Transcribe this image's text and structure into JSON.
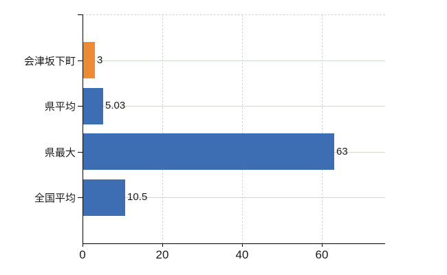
{
  "chart_data": {
    "type": "bar",
    "orientation": "horizontal",
    "title": "",
    "xlabel": "",
    "ylabel": "",
    "categories": [
      "会津坂下町",
      "県平均",
      "県最大",
      "全国平均"
    ],
    "values": [
      3,
      5.03,
      63,
      10.5
    ],
    "value_labels": [
      "3",
      "5.03",
      "63",
      "10.5"
    ],
    "bar_colors": [
      "#EC8B33",
      "#3D6EB3",
      "#3D6EB3",
      "#3D6EB3"
    ],
    "highlight_index": 0,
    "x_ticks": [
      0,
      20,
      40,
      60
    ],
    "x_tick_labels": [
      "0",
      "20",
      "40",
      "60"
    ],
    "xlim": [
      0,
      75.9
    ],
    "grid": true,
    "legend": false,
    "colors": {
      "highlight_bar": "#EC8B33",
      "default_bar": "#3D6EB3",
      "axis": "#000000",
      "grid_horizontal": "#CFD9CF",
      "grid_vertical": "#D3D5DC",
      "top_border": "#D3D5DC",
      "text": "#1A1A1A",
      "background": "#FFFFFF"
    }
  }
}
